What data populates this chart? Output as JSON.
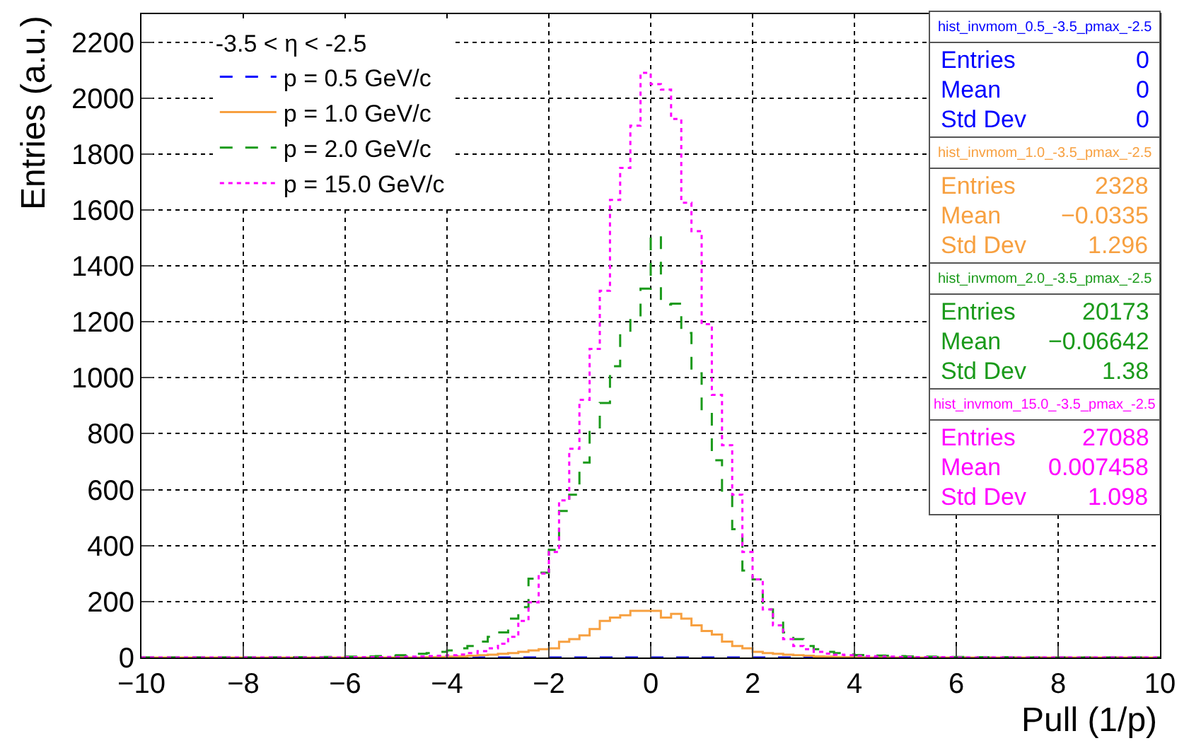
{
  "chart_data": {
    "type": "histogram",
    "xlabel": "Pull (1/p)",
    "ylabel": "Entries (a.u.)",
    "legend_title": "-3.5 < η < -2.5",
    "bins": [
      -10,
      -9.8,
      -9.6,
      -9.4,
      -9.2,
      -9,
      -8.8,
      -8.6,
      -8.4,
      -8.2,
      -8,
      -7.8,
      -7.6,
      -7.4,
      -7.2,
      -7,
      -6.8,
      -6.6,
      -6.4,
      -6.2,
      -6,
      -5.8,
      -5.6,
      -5.4,
      -5.2,
      -5,
      -4.8,
      -4.6,
      -4.4,
      -4.2,
      -4,
      -3.8,
      -3.6,
      -3.4,
      -3.2,
      -3,
      -2.8,
      -2.6,
      -2.4,
      -2.2,
      -2,
      -1.8,
      -1.6,
      -1.4,
      -1.2,
      -1,
      -0.8,
      -0.6,
      -0.4,
      -0.2,
      0,
      0.2,
      0.4,
      0.6,
      0.8,
      1,
      1.2,
      1.4,
      1.6,
      1.8,
      2,
      2.2,
      2.4,
      2.6,
      2.8,
      3,
      3.2,
      3.4,
      3.6,
      3.8,
      4,
      4.2,
      4.4,
      4.6,
      4.8,
      5,
      5.2,
      5.4,
      5.6,
      5.8,
      6,
      6.2,
      6.4,
      6.6,
      6.8,
      7,
      7.2,
      7.4,
      7.6,
      7.8,
      8,
      8.2,
      8.4,
      8.6,
      8.8,
      9,
      9.2,
      9.4,
      9.6,
      9.8,
      10
    ],
    "series": [
      {
        "name": "p = 0.5 GeV/c",
        "color": "#0000ff",
        "line_style": "dashed",
        "values": [
          0,
          0,
          0,
          0,
          0,
          0,
          0,
          0,
          0,
          0,
          0,
          0,
          0,
          0,
          0,
          0,
          0,
          0,
          0,
          0,
          0,
          0,
          0,
          0,
          0,
          0,
          0,
          0,
          0,
          0,
          0,
          0,
          0,
          0,
          0,
          0,
          0,
          0,
          0,
          0,
          0,
          0,
          0,
          0,
          0,
          0,
          0,
          0,
          0,
          0,
          0,
          0,
          0,
          0,
          0,
          0,
          0,
          0,
          0,
          0,
          0,
          0,
          0,
          0,
          0,
          0,
          0,
          0,
          0,
          0,
          0,
          0,
          0,
          0,
          0,
          0,
          0,
          0,
          0,
          0,
          0,
          0,
          0,
          0,
          0,
          0,
          0,
          0,
          0,
          0,
          0,
          0,
          0,
          0,
          0,
          0,
          0,
          0,
          0,
          0
        ]
      },
      {
        "name": "p = 1.0 GeV/c",
        "color": "#f7a040",
        "line_style": "solid",
        "values": [
          0,
          0,
          0,
          0,
          0,
          0,
          0,
          0,
          0,
          0,
          0,
          0,
          0,
          0,
          0,
          0,
          0,
          0,
          0,
          0,
          0,
          0,
          0,
          0,
          0,
          0,
          0,
          0,
          1,
          2,
          3,
          4,
          6,
          8,
          10,
          13,
          16,
          20,
          25,
          30,
          33,
          56,
          66,
          79,
          102,
          131,
          143,
          151,
          167,
          167,
          167,
          143,
          156,
          139,
          115,
          95,
          82,
          57,
          41,
          33,
          20,
          16,
          13,
          10,
          8,
          6,
          4,
          3,
          2,
          1,
          0,
          0,
          0,
          0,
          0,
          0,
          0,
          0,
          0,
          0,
          0,
          0,
          0,
          0,
          0,
          0,
          0,
          0,
          0,
          0,
          0,
          0,
          0,
          0,
          0,
          0,
          0,
          0,
          0,
          0
        ]
      },
      {
        "name": "p = 2.0 GeV/c",
        "color": "#1a9a1a",
        "line_style": "dashed",
        "values": [
          0,
          0,
          0,
          0,
          0,
          0,
          0,
          0,
          0,
          0,
          0,
          0,
          0,
          0,
          0,
          1,
          1,
          1,
          2,
          2,
          3,
          3,
          4,
          5,
          6,
          8,
          10,
          13,
          16,
          20,
          25,
          33,
          41,
          57,
          74,
          90,
          139,
          180,
          282,
          303,
          385,
          524,
          582,
          697,
          806,
          910,
          1041,
          1164,
          1213,
          1319,
          1508,
          1262,
          1265,
          1160,
          1016,
          882,
          705,
          582,
          459,
          311,
          279,
          172,
          131,
          90,
          66,
          41,
          30,
          20,
          16,
          11,
          9,
          8,
          7,
          6,
          5,
          4,
          3,
          3,
          2,
          2,
          2,
          1,
          1,
          1,
          1,
          0,
          0,
          0,
          0,
          0,
          0,
          0,
          0,
          0,
          0,
          0,
          0,
          0,
          0,
          0
        ]
      },
      {
        "name": "p = 15.0 GeV/c",
        "color": "#ff00ff",
        "line_style": "dotted",
        "values": [
          0,
          0,
          0,
          0,
          0,
          0,
          0,
          0,
          0,
          0,
          0,
          0,
          0,
          0,
          0,
          0,
          0,
          0,
          0,
          0,
          1,
          1,
          1,
          1,
          2,
          2,
          3,
          4,
          5,
          6,
          8,
          11,
          16,
          23,
          33,
          49,
          74,
          131,
          197,
          300,
          377,
          562,
          746,
          921,
          1103,
          1311,
          1636,
          1750,
          1901,
          2090,
          2050,
          2030,
          1925,
          1626,
          1524,
          1192,
          939,
          759,
          582,
          377,
          279,
          172,
          115,
          66,
          41,
          30,
          20,
          14,
          10,
          8,
          6,
          5,
          4,
          3,
          2,
          2,
          1,
          1,
          1,
          1,
          0,
          0,
          0,
          0,
          0,
          0,
          0,
          0,
          0,
          0,
          0,
          0,
          0,
          0,
          0,
          0,
          0,
          0,
          0,
          0
        ]
      }
    ],
    "xlim": [
      -10,
      10
    ],
    "xticks": [
      -10,
      -8,
      -6,
      -4,
      -2,
      0,
      2,
      4,
      6,
      8,
      10
    ],
    "ylim": [
      0,
      2300
    ],
    "yticks": [
      0,
      200,
      400,
      600,
      800,
      1000,
      1200,
      1400,
      1600,
      1800,
      2000,
      2200
    ],
    "grid": true,
    "legend": "top left",
    "annotations": [
      "hist_invmom_0.5_-3.5_pmax_-2.5",
      "Entries",
      "0",
      "Mean",
      "0",
      "Std Dev",
      "0",
      "hist_invmom_1.0_-3.5_pmax_-2.5",
      "Entries",
      "2328",
      "Mean",
      "−0.0335",
      "Std Dev",
      "1.296",
      "hist_invmom_2.0_-3.5_pmax_-2.5",
      "Entries",
      "20173",
      "Mean",
      "−0.06642",
      "Std Dev",
      "1.38",
      "hist_invmom_15.0_-3.5_pmax_-2.5",
      "Entries",
      "27088",
      "Mean",
      "0.007458",
      "Std Dev",
      "1.098"
    ]
  }
}
